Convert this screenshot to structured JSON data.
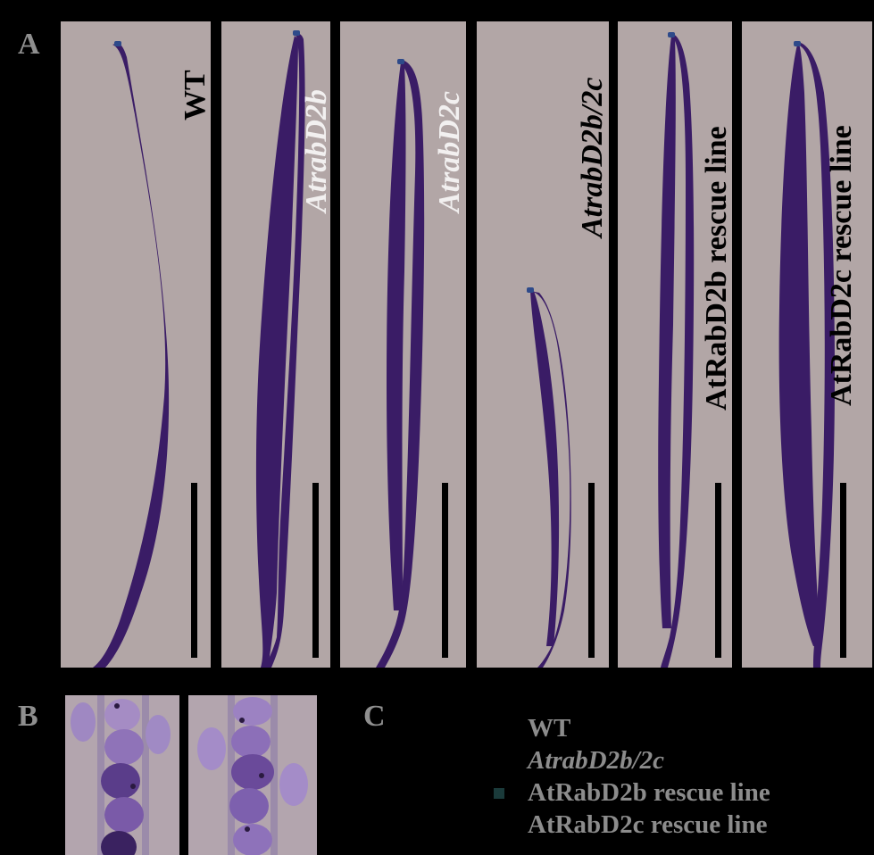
{
  "panel_letters": {
    "a": "A",
    "b": "B",
    "c": "C"
  },
  "silique_panels": [
    {
      "label": "WT",
      "italic": false
    },
    {
      "label": "AtrabD2b",
      "italic": true
    },
    {
      "label": "AtrabD2c",
      "italic": true
    },
    {
      "label": "AtrabD2b/2c",
      "italic": true
    },
    {
      "label": "AtRabD2b rescue line",
      "italic": false
    },
    {
      "label": "AtRabD2c rescue line",
      "italic": false
    }
  ],
  "legend": [
    {
      "label": "WT",
      "italic": false,
      "color": "#8c8c8c"
    },
    {
      "label": "AtrabD2b/2c",
      "italic": true,
      "color": "#8c8c8c"
    },
    {
      "label": "AtRabD2b rescue line",
      "italic": false,
      "color": "#1a3a3a"
    },
    {
      "label": "AtRabD2c rescue line",
      "italic": false,
      "color": "#000000"
    }
  ],
  "colors": {
    "background": "#000000",
    "panel_bg": "#b2a6a6",
    "silique": "#3a1c66",
    "silique_tip": "#2e4a8a",
    "seed": "#6a4a9a",
    "letters": "#8f8f8f"
  }
}
